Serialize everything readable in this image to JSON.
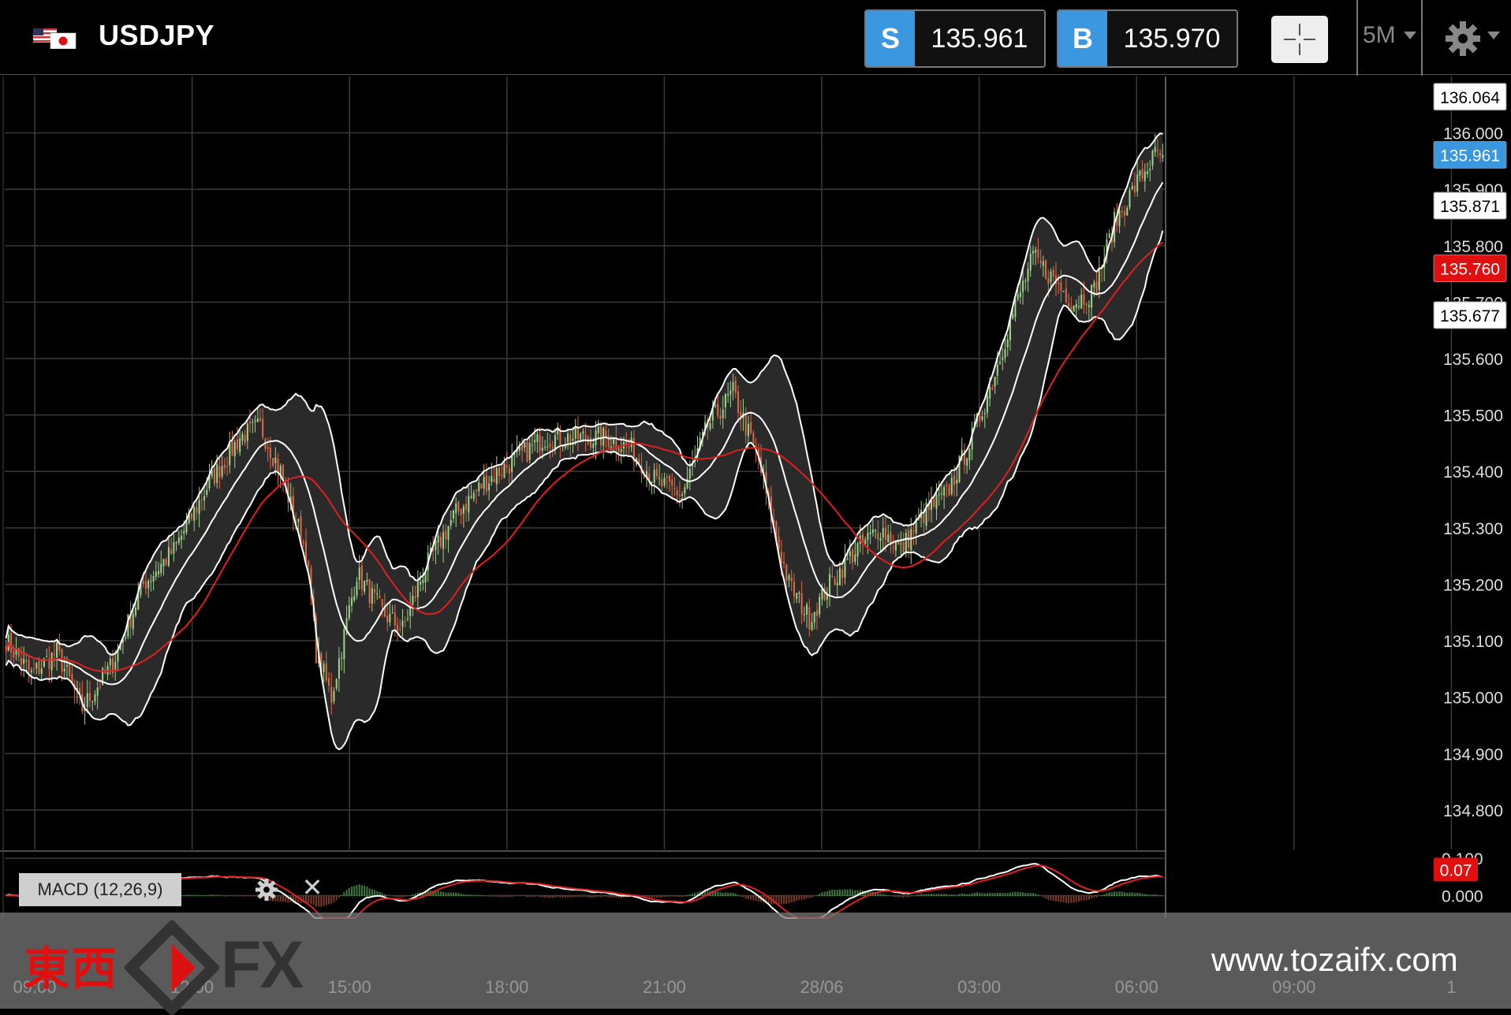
{
  "header": {
    "symbol": "USDJPY",
    "sell": {
      "label": "S",
      "price": "135.961",
      "color": "#3a97e0"
    },
    "buy": {
      "label": "B",
      "price": "135.970",
      "color": "#3a97e0"
    },
    "timeframe": "5M",
    "icons": {
      "flag": "usd-jpy-flag-icon",
      "crosshair": "crosshair-icon",
      "settings": "gear-icon",
      "dropdown": "chevron-down-icon"
    }
  },
  "indicator": {
    "label": "MACD (12,26,9)"
  },
  "watermark": {
    "kanji": "東西",
    "fx": "FX",
    "url": "www.tozaifx.com"
  },
  "chart_data": {
    "type": "candlestick",
    "series_colors": {
      "up": "#9fd48a",
      "down": "#e06a45",
      "bollinger": "#ffffff",
      "ma": "#e02020",
      "band_fill": "#2a2a2a"
    },
    "price_axis": {
      "ticks": [
        "136.000",
        "135.900",
        "135.800",
        "135.700",
        "135.600",
        "135.500",
        "135.400",
        "135.300",
        "135.200",
        "135.100",
        "135.000",
        "134.900",
        "134.800"
      ],
      "ylim": [
        134.73,
        136.1
      ]
    },
    "time_axis": {
      "ticks": [
        "09:00",
        "12:00",
        "15:00",
        "18:00",
        "21:00",
        "28/06",
        "03:00",
        "06:00",
        "09:00",
        "1"
      ]
    },
    "price_tags": [
      {
        "value": "136.064",
        "style": "white"
      },
      {
        "value": "135.961",
        "style": "blue"
      },
      {
        "value": "135.871",
        "style": "white"
      },
      {
        "value": "135.760",
        "style": "red"
      },
      {
        "value": "135.677",
        "style": "white"
      }
    ],
    "price_keyframes": [
      [
        0,
        135.1
      ],
      [
        10,
        135.04
      ],
      [
        20,
        135.08
      ],
      [
        30,
        134.98
      ],
      [
        42,
        135.06
      ],
      [
        54,
        135.2
      ],
      [
        66,
        135.26
      ],
      [
        80,
        135.38
      ],
      [
        92,
        135.46
      ],
      [
        100,
        135.48
      ],
      [
        108,
        135.4
      ],
      [
        112,
        135.34
      ],
      [
        118,
        135.26
      ],
      [
        122,
        135.08
      ],
      [
        128,
        135.0
      ],
      [
        138,
        135.22
      ],
      [
        148,
        135.15
      ],
      [
        156,
        135.12
      ],
      [
        164,
        135.22
      ],
      [
        176,
        135.32
      ],
      [
        188,
        135.38
      ],
      [
        200,
        135.42
      ],
      [
        212,
        135.46
      ],
      [
        224,
        135.46
      ],
      [
        236,
        135.46
      ],
      [
        246,
        135.44
      ],
      [
        256,
        135.38
      ],
      [
        266,
        135.36
      ],
      [
        276,
        135.48
      ],
      [
        286,
        135.54
      ],
      [
        296,
        135.42
      ],
      [
        302,
        135.3
      ],
      [
        308,
        135.2
      ],
      [
        316,
        135.14
      ],
      [
        324,
        135.2
      ],
      [
        334,
        135.26
      ],
      [
        344,
        135.3
      ],
      [
        352,
        135.26
      ],
      [
        360,
        135.32
      ],
      [
        370,
        135.36
      ],
      [
        380,
        135.46
      ],
      [
        388,
        135.56
      ],
      [
        396,
        135.68
      ],
      [
        404,
        135.78
      ],
      [
        412,
        135.74
      ],
      [
        420,
        135.7
      ],
      [
        428,
        135.72
      ],
      [
        436,
        135.84
      ],
      [
        446,
        135.92
      ],
      [
        452,
        135.96
      ],
      [
        455,
        135.961
      ]
    ],
    "bollinger": {
      "period": 20,
      "stddev": 2
    },
    "ma": {
      "period": 50
    },
    "macd": {
      "fast": 12,
      "slow": 26,
      "signal": 9,
      "ticks": [
        "0.100",
        "0.000"
      ],
      "ylim": [
        -0.06,
        0.115
      ],
      "current": "0.07"
    }
  }
}
